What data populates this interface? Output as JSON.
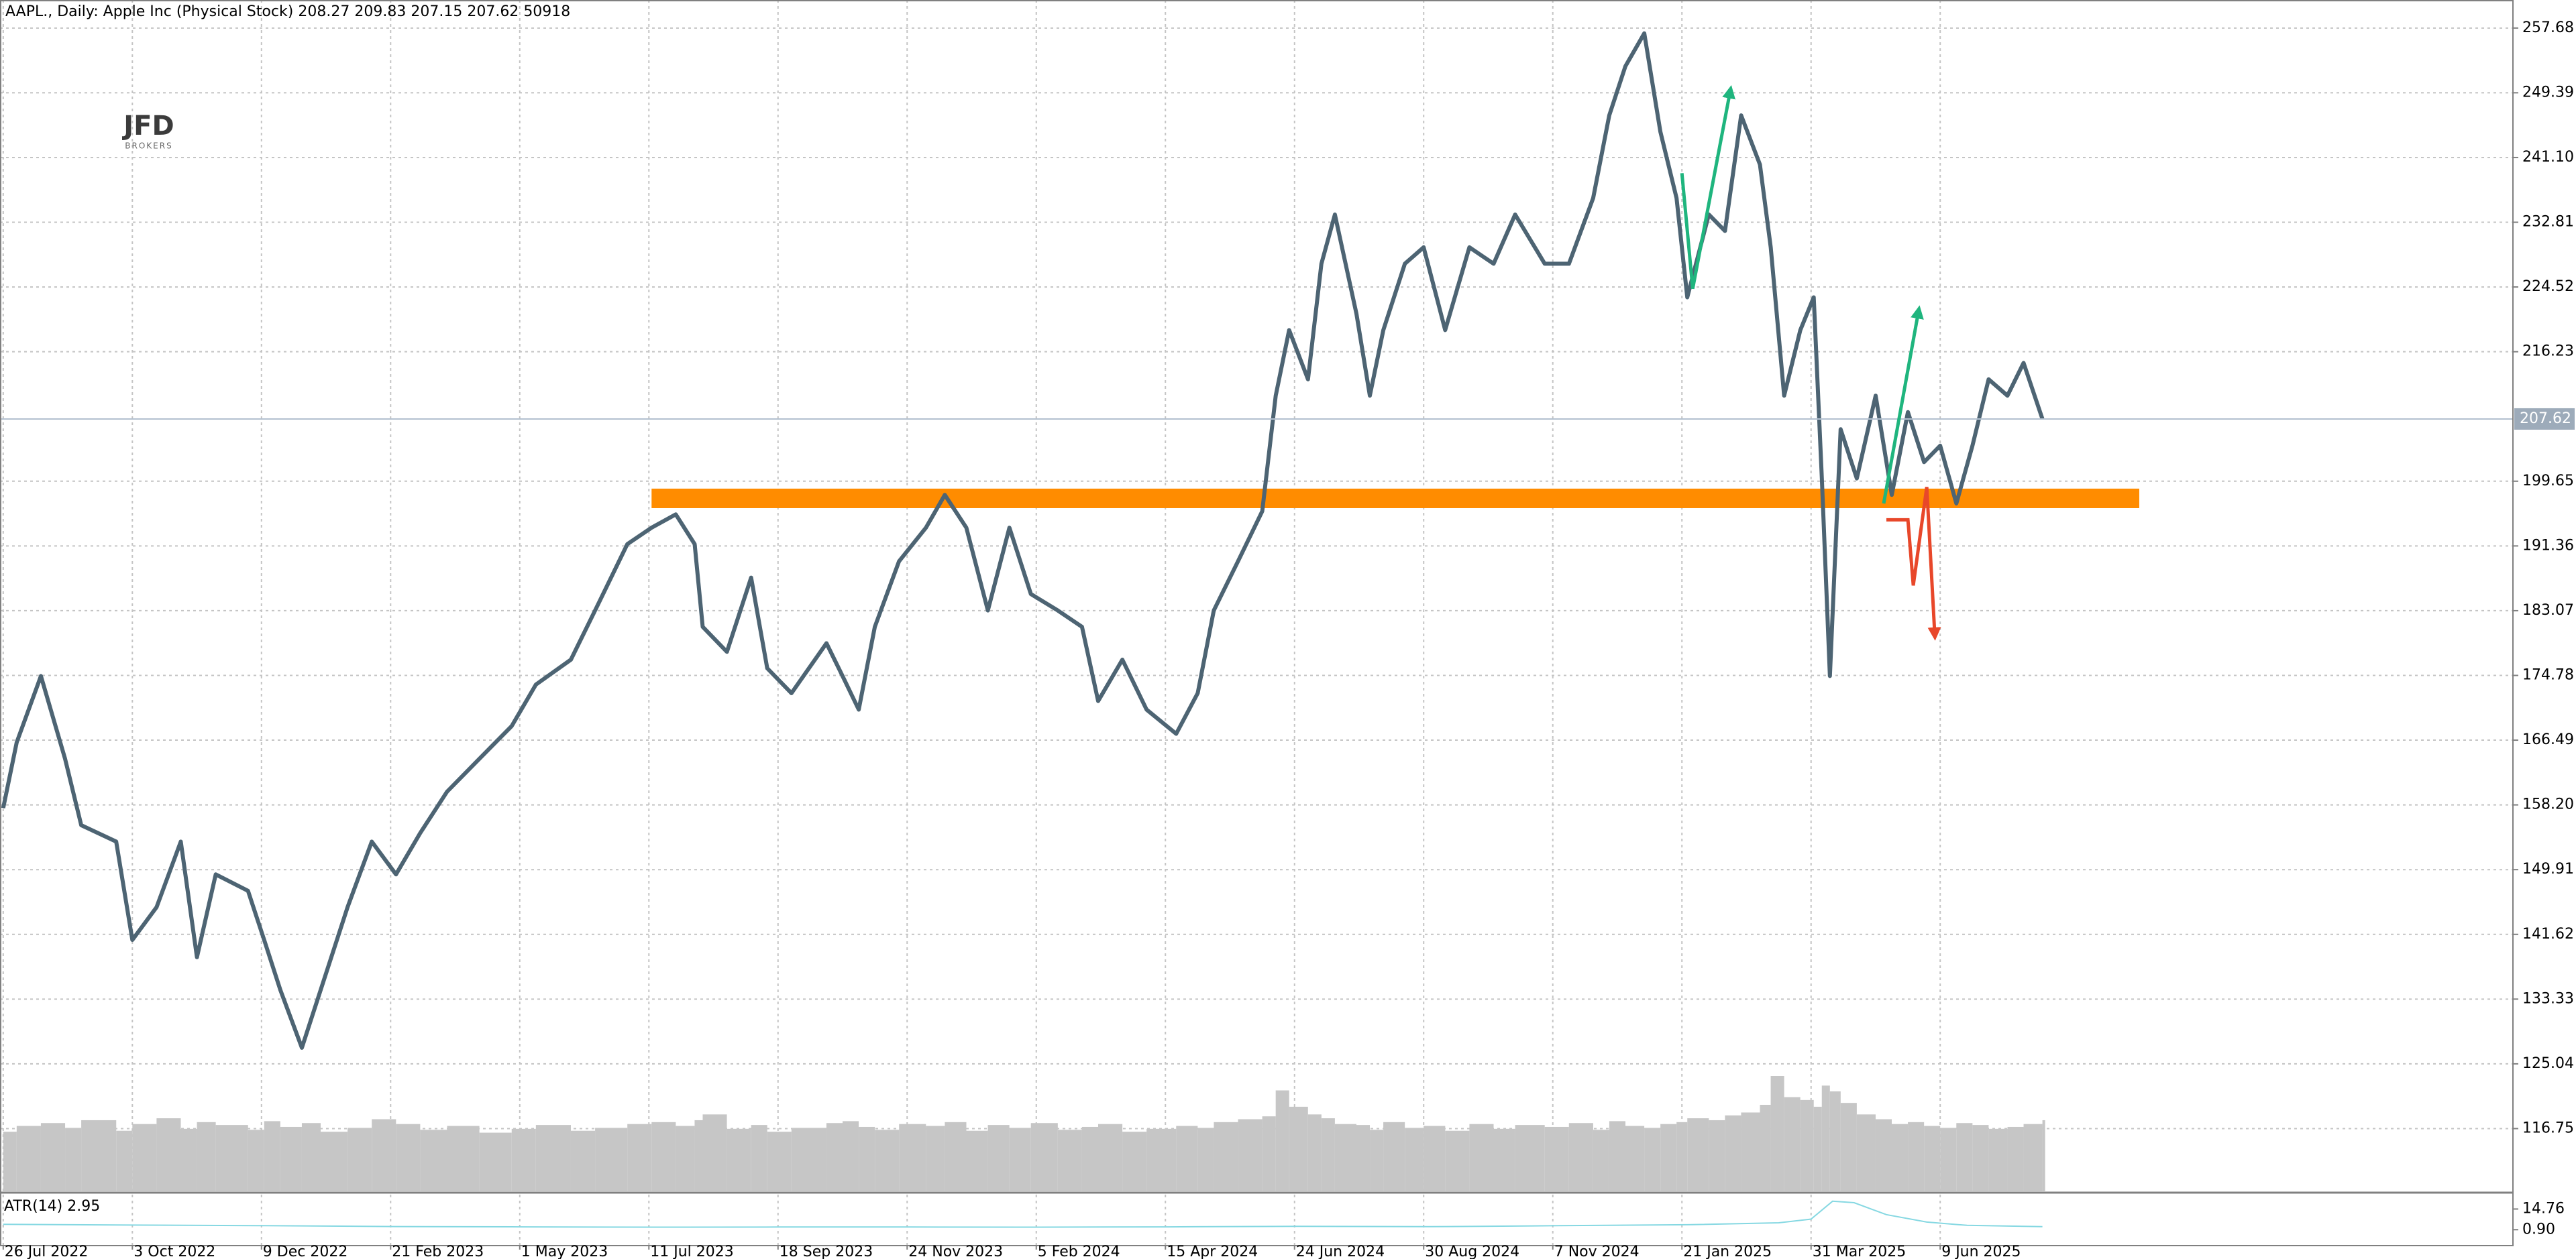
{
  "chart_data": {
    "type": "line",
    "title": "AAPL., Daily:  Apple Inc (Physical Stock)",
    "ohlc": [
      208.27,
      209.83,
      207.15,
      207.62
    ],
    "tick_volume": 50918,
    "logo": {
      "text": "JFD",
      "subtext": "BROKERS"
    },
    "color": "#4d6473",
    "x": [
      0,
      5,
      14,
      23,
      29,
      42,
      48,
      57,
      66,
      72,
      79,
      91,
      97,
      103,
      111,
      118,
      128,
      137,
      146,
      155,
      165,
      177,
      189,
      198,
      211,
      220,
      232,
      241,
      250,
      257,
      260,
      269,
      278,
      284,
      293,
      306,
      312,
      318,
      324,
      333,
      343,
      350,
      358,
      366,
      374,
      382,
      392,
      401,
      407,
      416,
      425,
      436,
      444,
      450,
      459,
      468,
      473,
      478,
      485,
      490,
      495,
      503,
      508,
      513,
      521,
      528,
      536,
      545,
      554,
      562,
      573,
      582,
      591,
      597,
      603,
      610,
      616,
      622,
      626,
      634,
      640,
      646,
      653,
      657,
      662,
      668,
      673,
      676,
      679,
      683,
      689,
      696,
      702,
      708,
      714,
      720,
      726,
      732,
      738,
      745,
      751,
      758
    ],
    "values": [
      157.8,
      166.2,
      174.7,
      164.1,
      155.6,
      153.5,
      140.9,
      145.1,
      153.5,
      138.7,
      149.3,
      147.2,
      140.9,
      134.5,
      127.1,
      134.5,
      145.1,
      153.5,
      149.3,
      154.6,
      159.9,
      164.1,
      168.3,
      173.6,
      176.8,
      183.1,
      191.6,
      193.7,
      195.4,
      191.6,
      181.0,
      177.8,
      187.3,
      175.7,
      172.5,
      178.9,
      174.7,
      170.4,
      181.0,
      189.4,
      193.7,
      197.9,
      193.7,
      183.1,
      193.7,
      185.2,
      183.1,
      181.0,
      171.5,
      176.8,
      170.4,
      167.3,
      172.5,
      183.1,
      189.4,
      195.8,
      210.6,
      219.0,
      212.7,
      227.5,
      233.8,
      221.1,
      210.6,
      219.0,
      227.5,
      229.6,
      219.0,
      229.6,
      227.5,
      233.8,
      227.5,
      227.5,
      235.9,
      246.5,
      252.8,
      257.0,
      244.4,
      235.9,
      223.2,
      233.8,
      231.7,
      246.5,
      240.2,
      229.6,
      210.6,
      219.0,
      223.2,
      200.0,
      174.7,
      206.3,
      200.0,
      210.6,
      197.9,
      208.5,
      202.1,
      204.2,
      196.8,
      204.2,
      212.7,
      210.6,
      214.8,
      207.62
    ],
    "volume": [
      62000,
      68000,
      71000,
      66000,
      74000,
      63000,
      70000,
      76000,
      65000,
      72000,
      69000,
      64000,
      73000,
      67000,
      71000,
      62000,
      66000,
      75000,
      70000,
      64000,
      68000,
      61000,
      65000,
      69000,
      63000,
      66000,
      70000,
      72000,
      68000,
      74000,
      80000,
      65000,
      69000,
      62000,
      66000,
      71000,
      73000,
      67000,
      64000,
      70000,
      68000,
      72000,
      63000,
      69000,
      66000,
      71000,
      64000,
      67000,
      70000,
      62000,
      65000,
      68000,
      66000,
      72000,
      75000,
      78000,
      105000,
      88000,
      80000,
      76000,
      70000,
      69000,
      64000,
      72000,
      66000,
      68000,
      63000,
      70000,
      65000,
      69000,
      67000,
      71000,
      64000,
      73000,
      68000,
      66000,
      70000,
      72000,
      76000,
      74000,
      79000,
      82000,
      90000,
      120000,
      98000,
      95000,
      88000,
      110000,
      104000,
      92000,
      80000,
      75000,
      70000,
      72000,
      68000,
      66000,
      71000,
      69000,
      65000,
      67000,
      70000,
      74000
    ],
    "volume_color": "#c6c6c6",
    "xlim": [
      -1.2,
      932.9
    ],
    "xticks": [
      {
        "value": 0,
        "label": "26 Jul 2022"
      },
      {
        "value": 48,
        "label": "3 Oct 2022"
      },
      {
        "value": 96,
        "label": "9 Dec 2022"
      },
      {
        "value": 144,
        "label": "21 Feb 2023"
      },
      {
        "value": 192,
        "label": "1 May 2023"
      },
      {
        "value": 240,
        "label": "11 Jul 2023"
      },
      {
        "value": 288,
        "label": "18 Sep 2023"
      },
      {
        "value": 336,
        "label": "24 Nov 2023"
      },
      {
        "value": 384,
        "label": "5 Feb 2024"
      },
      {
        "value": 432,
        "label": "15 Apr 2024"
      },
      {
        "value": 480,
        "label": "24 Jun 2024"
      },
      {
        "value": 528,
        "label": "30 Aug 2024"
      },
      {
        "value": 576,
        "label": "7 Nov 2024"
      },
      {
        "value": 624,
        "label": "21 Jan 2025"
      },
      {
        "value": 672,
        "label": "31 Mar 2025"
      },
      {
        "value": 720,
        "label": "9 Jun 2025"
      }
    ],
    "ylim": [
      108.72,
      261.27
    ],
    "yticks": [
      257.68,
      249.39,
      {
        "value": 241.1,
        "label": "241.10"
      },
      232.81,
      224.52,
      216.23,
      199.65,
      191.36,
      183.07,
      174.78,
      166.49,
      {
        "value": 158.2,
        "label": "158.20"
      },
      149.91,
      141.62,
      133.33,
      125.04,
      116.75
    ],
    "grid": true,
    "zones": [
      {
        "color": "#ff8c00",
        "x": [
          241,
          794
        ],
        "y": [
          196.2,
          198.7
        ]
      }
    ],
    "arrows": [
      {
        "color": "#1fb57e",
        "x": [
          624,
          628,
          642
        ],
        "y": [
          239.1,
          224.3,
          249.7
        ]
      },
      {
        "color": "#1fb57e",
        "x": [
          699,
          712
        ],
        "y": [
          196.8,
          221.5
        ]
      },
      {
        "color": "#e8472a",
        "x": [
          700,
          708,
          710,
          715,
          718
        ],
        "y": [
          194.7,
          194.7,
          186.3,
          198.9,
          179.9
        ]
      }
    ],
    "atr": {
      "name": "ATR(14)",
      "color": "#86d8e2",
      "x": [
        0,
        48,
        97,
        146,
        193,
        241,
        289,
        337,
        385,
        433,
        481,
        530,
        578,
        626,
        660,
        672,
        680,
        688,
        700,
        715,
        730,
        758
      ],
      "values": [
        4.5,
        4.0,
        3.6,
        3.0,
        2.8,
        2.6,
        2.7,
        2.7,
        2.6,
        2.8,
        3.2,
        2.9,
        3.6,
        4.2,
        5.5,
        8,
        20,
        19,
        11,
        6,
        3.8,
        2.95
      ],
      "ylim": [
        -9.76,
        24.4
      ],
      "yticks": [
        14.76,
        {
          "value": 0.9,
          "label": "0.90"
        }
      ]
    }
  }
}
